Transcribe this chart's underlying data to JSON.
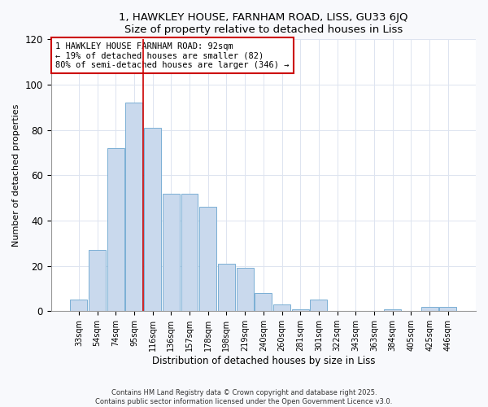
{
  "title1": "1, HAWKLEY HOUSE, FARNHAM ROAD, LISS, GU33 6JQ",
  "title2": "Size of property relative to detached houses in Liss",
  "xlabel": "Distribution of detached houses by size in Liss",
  "ylabel": "Number of detached properties",
  "bar_color": "#c9d9ed",
  "bar_edge_color": "#7aafd4",
  "categories": [
    "33sqm",
    "54sqm",
    "74sqm",
    "95sqm",
    "116sqm",
    "136sqm",
    "157sqm",
    "178sqm",
    "198sqm",
    "219sqm",
    "240sqm",
    "260sqm",
    "281sqm",
    "301sqm",
    "322sqm",
    "343sqm",
    "363sqm",
    "384sqm",
    "405sqm",
    "425sqm",
    "446sqm"
  ],
  "values": [
    5,
    27,
    72,
    92,
    81,
    52,
    52,
    46,
    21,
    19,
    8,
    3,
    1,
    5,
    0,
    0,
    0,
    1,
    0,
    2,
    2
  ],
  "ylim": [
    0,
    120
  ],
  "yticks": [
    0,
    20,
    40,
    60,
    80,
    100,
    120
  ],
  "vline_x": 3.5,
  "vline_color": "#cc0000",
  "annotation_title": "1 HAWKLEY HOUSE FARNHAM ROAD: 92sqm",
  "annotation_line1": "← 19% of detached houses are smaller (82)",
  "annotation_line2": "80% of semi-detached houses are larger (346) →",
  "footnote1": "Contains HM Land Registry data © Crown copyright and database right 2025.",
  "footnote2": "Contains public sector information licensed under the Open Government Licence v3.0.",
  "bg_color": "#f8f9fc",
  "plot_bg_color": "#ffffff",
  "grid_color": "#dde4f0"
}
